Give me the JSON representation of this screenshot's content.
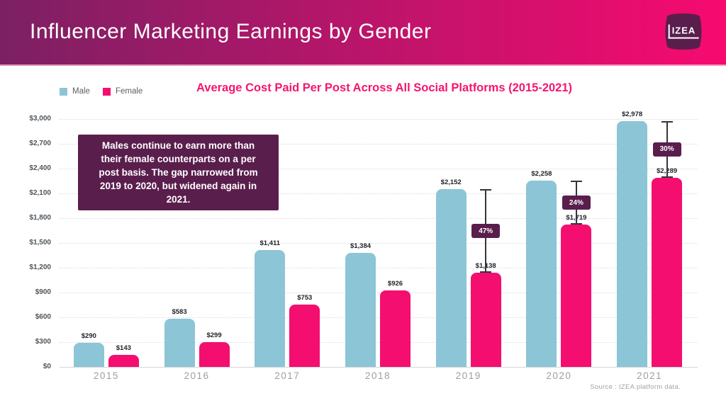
{
  "header": {
    "title": "Influencer Marketing Earnings by Gender",
    "logo": "IZEA"
  },
  "chart": {
    "title": "Average Cost Paid Per Post Across All Social Platforms (2015-2021)",
    "annotation": "Males continue to earn more than their female counterparts on a per post basis. The gap narrowed from 2019 to 2020, but widened again in 2021.",
    "source": "Source : IZEA platform data."
  },
  "colors": {
    "male": "#8CC5D6",
    "female": "#F40E6F",
    "accent_purple": "#5A1E4D",
    "title_pink": "#F5156F",
    "header_gradient_left": "#7C2063",
    "header_gradient_right": "#F70A70",
    "bracket_line": "#33363A"
  },
  "chart_data": {
    "type": "bar",
    "title": "Average Cost Paid Per Post Across All Social Platforms (2015-2021)",
    "categories": [
      "2015",
      "2016",
      "2017",
      "2018",
      "2019",
      "2020",
      "2021"
    ],
    "series": [
      {
        "name": "Male",
        "color": "#8CC5D6",
        "values": [
          290,
          583,
          1411,
          1384,
          2152,
          2258,
          2978
        ]
      },
      {
        "name": "Female",
        "color": "#F40E6F",
        "values": [
          143,
          299,
          753,
          926,
          1138,
          1719,
          2289
        ]
      }
    ],
    "value_labels": [
      [
        "$290",
        "$583",
        "$1,411",
        "$1,384",
        "$2,152",
        "$2,258",
        "$2,978"
      ],
      [
        "$143",
        "$299",
        "$753",
        "$926",
        "$1,138",
        "$1,719",
        "$2,289"
      ]
    ],
    "gap_labels": [
      null,
      null,
      null,
      null,
      "47%",
      "24%",
      "30%"
    ],
    "y_ticks": [
      "$3,000",
      "$2,700",
      "$2,400",
      "$2,100",
      "$1,800",
      "$1,500",
      "$1,200",
      "$900",
      "$600",
      "$300",
      "$0"
    ],
    "ylim": [
      0,
      3000
    ],
    "grid": "dotted horizontal",
    "legend_position": "top-left",
    "annotation": "Males continue to earn more than their female counterparts on a per post basis. The gap narrowed from 2019 to 2020, but widened again in 2021.",
    "source": "Source : IZEA platform data."
  }
}
